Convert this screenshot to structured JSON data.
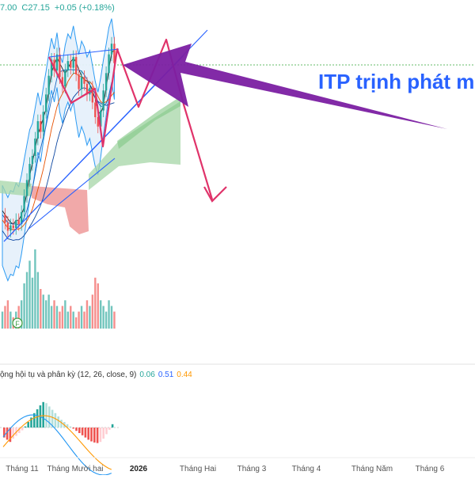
{
  "header": {
    "partial_value": "7.00",
    "close_label": "C27.15",
    "change": "+0.05 (+0.18%)"
  },
  "annotation": "ITP trịnh phát m",
  "macd": {
    "title": "ộng hội tụ và phân kỳ (12, 26, close, 9)",
    "v1": "0.06",
    "v2": "0.51",
    "v3": "0.44"
  },
  "colors": {
    "up": "#26a69a",
    "down": "#ef5350",
    "bb_fill": "#e6f1fb",
    "bb_line": "#2196f3",
    "wedge": "#2962ff",
    "zigzag": "#e0336a",
    "arrow": "#7b1fa2",
    "cloud_green": "#a5d6a7",
    "cloud_red": "#ef9a9a",
    "macd_line": "#2196f3",
    "signal_line": "#ff9800"
  },
  "chart_data": {
    "type": "candlestick",
    "x_axis_labels": [
      "Tháng 11",
      "Tháng Mười hai",
      "2026",
      "Tháng Hai",
      "Tháng 3",
      "Tháng 4",
      "Tháng Năm",
      "Tháng 6"
    ],
    "last_close": 27.15,
    "change": 0.05,
    "change_pct": 0.18,
    "indicators": [
      "Bollinger Bands",
      "Ichimoku Cloud",
      "Volume",
      "MACD (12, 26, close, 9)"
    ],
    "macd_values": [
      0.06,
      0.51,
      0.44
    ],
    "price_series": [
      15.8,
      15.2,
      14.6,
      15.0,
      14.8,
      15.4,
      15.1,
      16.0,
      17.2,
      18.4,
      19.6,
      20.2,
      21.5,
      22.8,
      22.0,
      23.5,
      24.8,
      26.2,
      27.4,
      26.6,
      27.8,
      26.1,
      25.4,
      26.6,
      27.3,
      26.8,
      27.6,
      26.3,
      25.2,
      26.1,
      25.6,
      24.8,
      25.3,
      24.2,
      23.1,
      22.4,
      23.6,
      25.1,
      26.4,
      27.8,
      28.6,
      27.15
    ],
    "macd_hist": [
      -0.18,
      -0.22,
      -0.26,
      -0.2,
      -0.15,
      -0.1,
      -0.05,
      0.02,
      0.1,
      0.18,
      0.26,
      0.33,
      0.4,
      0.46,
      0.44,
      0.38,
      0.32,
      0.26,
      0.2,
      0.14,
      0.1,
      0.06,
      0.02,
      -0.02,
      -0.06,
      -0.1,
      -0.14,
      -0.18,
      -0.22,
      -0.25,
      -0.27,
      -0.28,
      -0.26,
      -0.2,
      -0.12,
      -0.04,
      0.06
    ],
    "volume": [
      3,
      4,
      5,
      3,
      2,
      3,
      4,
      5,
      8,
      10,
      12,
      9,
      14,
      10,
      7,
      6,
      5,
      6,
      4,
      5,
      4,
      3,
      4,
      5,
      3,
      4,
      3,
      2,
      3,
      4,
      3,
      5,
      4,
      6,
      9,
      8,
      5,
      4,
      3,
      5,
      4,
      3
    ]
  }
}
